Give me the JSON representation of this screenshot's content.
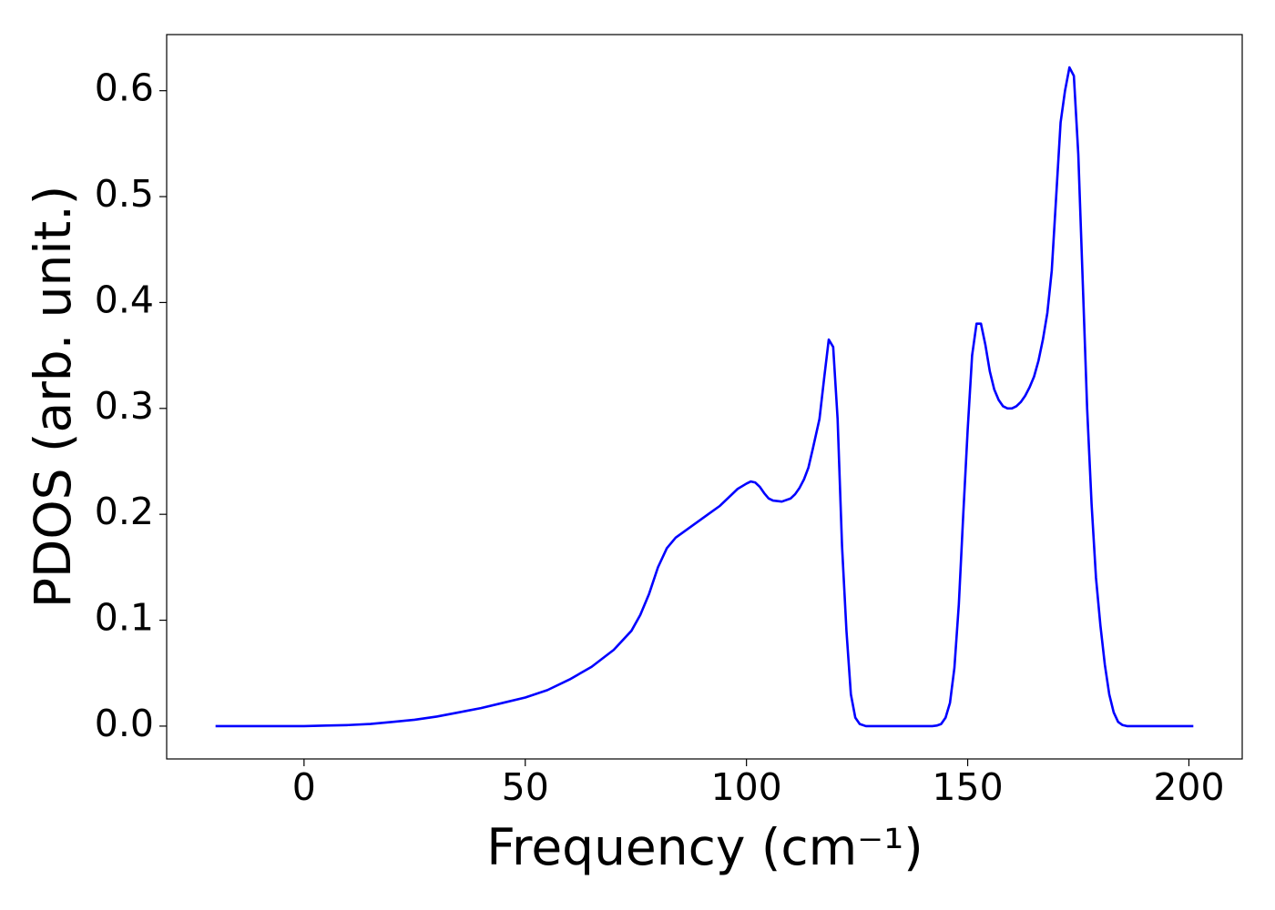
{
  "chart_data": {
    "type": "line",
    "x_label": "Frequency (cm⁻¹)",
    "y_label": "PDOS (arb. unit.)",
    "color": "#0000ff",
    "x": [
      -20,
      -10,
      0,
      5,
      10,
      15,
      20,
      25,
      30,
      35,
      40,
      45,
      50,
      55,
      60,
      65,
      70,
      74,
      76,
      78,
      80,
      82,
      84,
      86,
      88,
      90,
      92,
      94,
      96,
      98,
      100,
      101,
      102,
      103,
      104,
      105,
      106,
      108,
      110,
      111,
      112,
      113,
      114,
      115,
      116.5,
      117.6,
      118.6,
      119.6,
      120.6,
      121.6,
      122.6,
      123.6,
      124.6,
      125.6,
      127,
      130,
      135,
      140,
      142,
      143,
      144,
      145,
      146,
      147,
      148,
      149,
      150,
      151,
      152,
      153,
      154,
      155,
      156,
      157,
      158,
      159,
      160,
      161,
      162,
      163,
      164,
      165,
      166,
      167,
      168,
      169,
      170,
      171,
      172,
      173,
      174,
      175,
      176,
      177,
      178,
      179,
      180,
      181,
      182,
      183,
      184,
      185,
      186,
      190,
      195,
      201
    ],
    "values": [
      0,
      0,
      0,
      0.0005,
      0.001,
      0.002,
      0.004,
      0.006,
      0.009,
      0.013,
      0.017,
      0.022,
      0.027,
      0.034,
      0.044,
      0.056,
      0.072,
      0.09,
      0.105,
      0.125,
      0.15,
      0.168,
      0.178,
      0.184,
      0.19,
      0.196,
      0.202,
      0.208,
      0.216,
      0.224,
      0.229,
      0.231,
      0.23,
      0.226,
      0.22,
      0.215,
      0.213,
      0.212,
      0.215,
      0.219,
      0.225,
      0.233,
      0.244,
      0.262,
      0.29,
      0.33,
      0.365,
      0.358,
      0.29,
      0.17,
      0.09,
      0.03,
      0.008,
      0.002,
      0,
      0,
      0,
      0,
      0,
      0.0005,
      0.002,
      0.008,
      0.022,
      0.055,
      0.115,
      0.2,
      0.28,
      0.35,
      0.38,
      0.38,
      0.36,
      0.335,
      0.318,
      0.308,
      0.302,
      0.3,
      0.3,
      0.302,
      0.306,
      0.312,
      0.32,
      0.33,
      0.345,
      0.365,
      0.39,
      0.43,
      0.5,
      0.57,
      0.6,
      0.622,
      0.614,
      0.54,
      0.42,
      0.3,
      0.21,
      0.14,
      0.095,
      0.058,
      0.03,
      0.013,
      0.004,
      0.001,
      0,
      0,
      0,
      0
    ],
    "xlim": [
      -31.05,
      212.05
    ],
    "xticks": [
      0,
      50,
      100,
      150,
      200
    ],
    "ylim": [
      -0.031,
      0.653
    ],
    "yticks": [
      {
        "value": 0,
        "label": "0.0"
      },
      0.1,
      0.2,
      0.3,
      0.4,
      0.5,
      0.6
    ]
  }
}
